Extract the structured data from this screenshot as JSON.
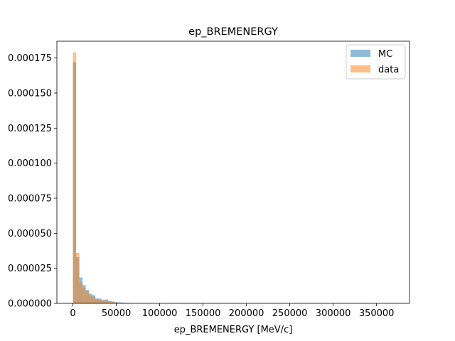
{
  "chart_data": {
    "type": "bar",
    "title": "ep_BREMENERGY",
    "xlabel": "ep_BREMENERGY [MeV/c]",
    "ylabel": "",
    "xlim": [
      -18500,
      388000
    ],
    "ylim": [
      0,
      0.000187
    ],
    "x_ticks": [
      0,
      50000,
      100000,
      150000,
      200000,
      250000,
      300000,
      350000
    ],
    "x_tick_labels": [
      "0",
      "50000",
      "100000",
      "150000",
      "200000",
      "250000",
      "300000",
      "350000"
    ],
    "y_ticks": [
      0,
      2.5e-05,
      5e-05,
      7.5e-05,
      0.0001,
      0.000125,
      0.00015,
      0.000175
    ],
    "y_tick_labels": [
      "0.000000",
      "0.000025",
      "0.000050",
      "0.000075",
      "0.000100",
      "0.000125",
      "0.000150",
      "0.000175"
    ],
    "bin_edges": [
      0,
      3700,
      7400,
      11100,
      14800,
      18500,
      22200,
      25900,
      29600,
      33300,
      37000,
      40700,
      44400,
      48100,
      51800,
      55500,
      59200,
      62900,
      66600
    ],
    "series": [
      {
        "name": "MC",
        "color": "#1f77b4",
        "opacity": 0.5,
        "values": [
          0.000172,
          3.3e-05,
          1.85e-05,
          1.3e-05,
          9.5e-06,
          6.8e-06,
          5.8e-06,
          3.5e-06,
          3.3e-06,
          2.5e-06,
          2.8e-06,
          1.7e-06,
          1.3e-06,
          9e-07,
          7e-07,
          5e-07,
          3e-07,
          2e-07
        ]
      },
      {
        "name": "data",
        "color": "#ff7f0e",
        "opacity": 0.5,
        "values": [
          0.000179,
          3.6e-05,
          1.5e-05,
          1.1e-05,
          8.5e-06,
          5.5e-06,
          4.5e-06,
          3e-06,
          2.5e-06,
          2e-06,
          1.8e-06,
          1.2e-06,
          9e-07,
          6e-07,
          4e-07,
          3e-07,
          2e-07,
          1e-07
        ]
      }
    ],
    "legend": {
      "position": "top-right",
      "entries": [
        "MC",
        "data"
      ]
    },
    "grid": false
  }
}
